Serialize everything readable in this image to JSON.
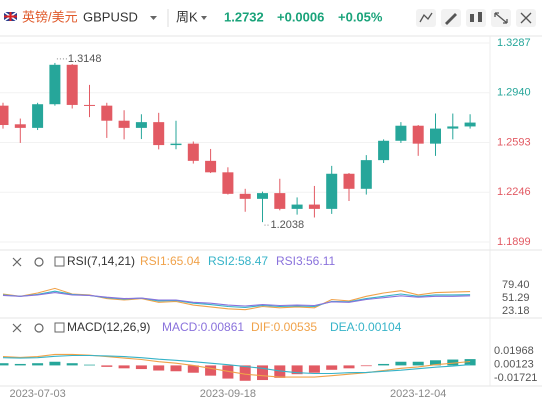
{
  "header": {
    "symbol_name": "英镑/美元",
    "symbol": "GBPUSD",
    "period": "周K",
    "change": "+0.0006",
    "change_pct": "+0.05%"
  },
  "chart_data": [
    {
      "type": "candlestick",
      "categories": [
        null,
        null,
        "2023-07-03",
        null,
        null,
        null,
        null,
        null,
        null,
        null,
        null,
        null,
        null,
        "2023-09-18",
        null,
        null,
        null,
        null,
        null,
        null,
        null,
        null,
        null,
        null,
        "2023-12-04",
        null,
        null,
        null
      ],
      "open": [
        1.285,
        1.272,
        1.2695,
        1.286,
        1.3135,
        1.2855,
        1.285,
        1.2745,
        1.2695,
        1.2735,
        1.2575,
        1.2585,
        1.2465,
        1.2385,
        1.2235,
        1.22,
        1.224,
        1.213,
        1.216,
        1.213,
        1.2375,
        1.227,
        1.247,
        1.2605,
        1.271,
        1.2585,
        1.269,
        1.2705
      ],
      "high": [
        1.287,
        1.276,
        1.287,
        1.3148,
        1.314,
        1.2995,
        1.287,
        1.2818,
        1.279,
        1.28,
        1.2745,
        1.26,
        1.2548,
        1.242,
        1.227,
        1.225,
        1.234,
        1.221,
        1.229,
        1.243,
        1.238,
        1.2505,
        1.2615,
        1.2735,
        1.2715,
        1.2795,
        1.2795,
        1.279
      ],
      "low": [
        1.269,
        1.259,
        1.268,
        1.285,
        1.283,
        1.277,
        1.2625,
        1.2615,
        1.2617,
        1.2545,
        1.2546,
        1.2446,
        1.238,
        1.223,
        1.211,
        1.2038,
        1.212,
        1.209,
        1.207,
        1.2095,
        1.2185,
        1.223,
        1.245,
        1.259,
        1.25,
        1.25,
        1.2615,
        1.269
      ],
      "close": [
        1.2715,
        1.2695,
        1.286,
        1.3135,
        1.2855,
        1.285,
        1.2745,
        1.2695,
        1.2735,
        1.2575,
        1.2585,
        1.2465,
        1.2385,
        1.2235,
        1.22,
        1.224,
        1.213,
        1.216,
        1.213,
        1.2375,
        1.227,
        1.247,
        1.2605,
        1.271,
        1.2585,
        1.269,
        1.2705,
        1.2732
      ],
      "up_color": "#26a69a",
      "down_color": "#e25a63",
      "ylim": [
        1.1899,
        1.3287
      ],
      "yticks": [
        1.3287,
        {
          "value": 1.294,
          "label": "1.2940"
        },
        1.2593,
        1.2246,
        1.1899
      ],
      "grid": true
    },
    {
      "type": "line",
      "title": "RSI(7,14,21)",
      "series": [
        {
          "name": "RSI1:65.04",
          "color": "#f0a24a",
          "values": [
            60,
            55,
            62,
            72,
            60,
            58,
            50,
            47,
            50,
            42,
            44,
            36,
            32,
            28,
            26,
            33,
            30,
            32,
            30,
            48,
            45,
            55,
            62,
            67,
            58,
            63,
            64,
            65.04
          ]
        },
        {
          "name": "RSI2:58.47",
          "color": "#36b3c8",
          "values": [
            58,
            55,
            59,
            66,
            59,
            57,
            52,
            49,
            51,
            45,
            46,
            40,
            37,
            33,
            31,
            35,
            33,
            34,
            33,
            44,
            43,
            50,
            55,
            60,
            55,
            58,
            58,
            58.47
          ]
        },
        {
          "name": "RSI3:56.11",
          "color": "#8a72dc",
          "values": [
            57,
            55,
            58,
            63,
            58,
            57,
            53,
            50,
            51,
            47,
            47,
            42,
            40,
            36,
            34,
            37,
            35,
            36,
            35,
            43,
            42,
            48,
            52,
            56,
            53,
            55,
            55,
            56.11
          ]
        }
      ],
      "ylim": [
        23.18,
        79.4
      ],
      "yticks": [
        {
          "value": 79.4,
          "label": "79.40"
        },
        51.29,
        23.18
      ]
    },
    {
      "type": "macd",
      "title": "MACD(12,26,9)",
      "up_color": "#26a69a",
      "down_color": "#e25a63",
      "series": [
        {
          "name": "MACD:0.00861",
          "color": "#8a72dc",
          "kind": "bar",
          "values": [
            0.003,
            0.002,
            0.003,
            0.005,
            0.003,
            0.001,
            -0.002,
            -0.004,
            -0.005,
            -0.007,
            -0.008,
            -0.01,
            -0.014,
            -0.018,
            -0.021,
            -0.02,
            -0.017,
            -0.012,
            -0.01,
            -0.006,
            -0.004,
            -0.001,
            0.002,
            0.005,
            0.005,
            0.007,
            0.008,
            0.00861
          ]
        },
        {
          "name": "DIF:0.00535",
          "color": "#f0a24a",
          "values": [
            0.012,
            0.011,
            0.012,
            0.015,
            0.015,
            0.014,
            0.012,
            0.01,
            0.008,
            0.005,
            0.003,
            0.0,
            -0.004,
            -0.008,
            -0.012,
            -0.014,
            -0.016,
            -0.016,
            -0.016,
            -0.014,
            -0.012,
            -0.01,
            -0.007,
            -0.004,
            -0.002,
            0.001,
            0.003,
            0.00535
          ]
        },
        {
          "name": "DEA:0.00104",
          "color": "#36b3c8",
          "values": [
            0.0105,
            0.01,
            0.0105,
            0.0125,
            0.0135,
            0.0135,
            0.013,
            0.012,
            0.0105,
            0.0085,
            0.007,
            0.005,
            0.003,
            0.001,
            -0.0015,
            -0.004,
            -0.0075,
            -0.01,
            -0.011,
            -0.011,
            -0.01,
            -0.0095,
            -0.008,
            -0.0065,
            -0.0045,
            -0.0025,
            -0.001,
            0.00104
          ]
        }
      ],
      "ylim": [
        -0.01721,
        0.01968
      ],
      "yticks": [
        0.01968,
        0.00123,
        -0.01721
      ]
    }
  ]
}
